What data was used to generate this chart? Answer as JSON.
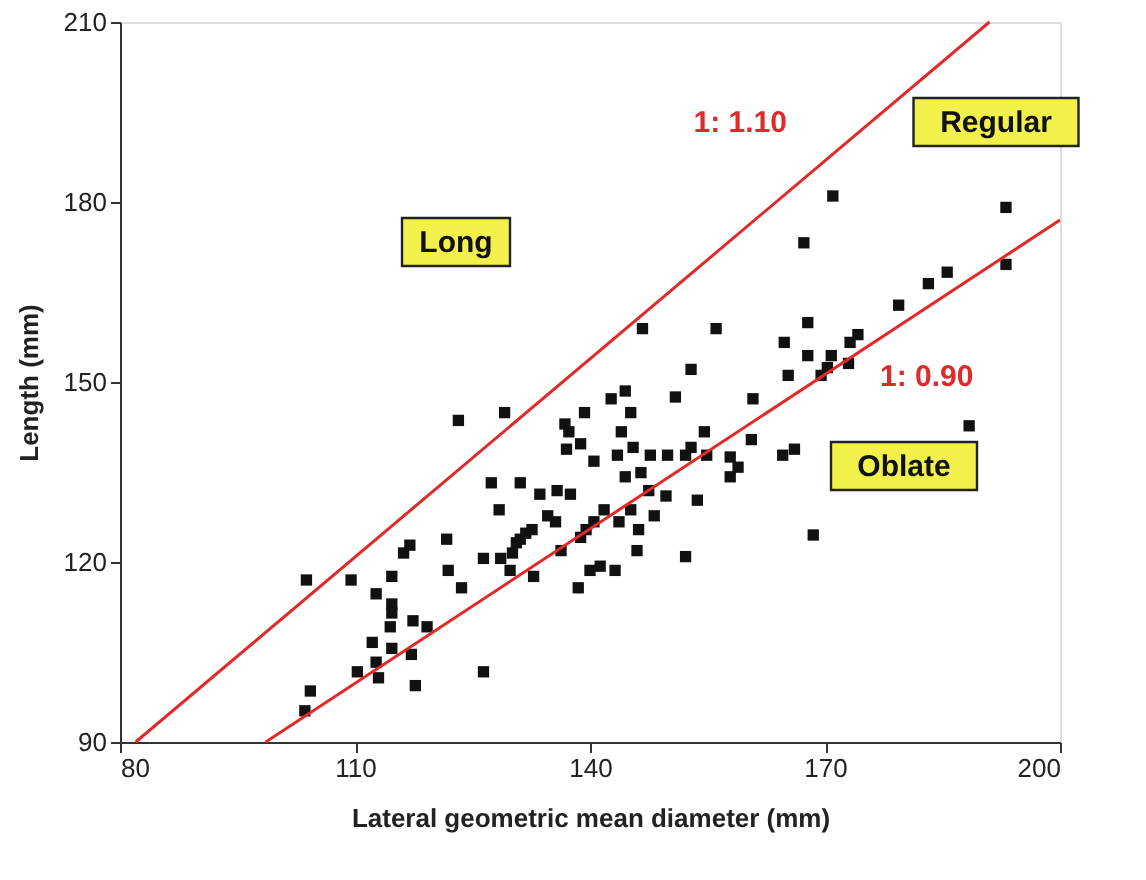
{
  "chart_data": {
    "type": "scatter",
    "xlabel": "Lateral geometric mean diameter (mm)",
    "ylabel": "Length (mm)",
    "xlim": [
      80,
      200
    ],
    "xticks": [
      80,
      110,
      140,
      170,
      200
    ],
    "ylim": [
      90,
      210
    ],
    "yticks": [
      90,
      120,
      150,
      180,
      210
    ],
    "grid": false,
    "annotations": [
      "Long",
      "Regular",
      "Oblate"
    ],
    "series": [
      {
        "color": "#111111",
        "marker": "square",
        "x": [
          123.2,
          129.1,
          127.4,
          131.1,
          128.4,
          117.0,
          116.2,
          121.7,
          126.4,
          128.6,
          130.6,
          130.1,
          129.8,
          103.8,
          109.5,
          114.7,
          112.7,
          121.9,
          123.6,
          114.7,
          114.7,
          114.5,
          117.4,
          119.2,
          112.2,
          114.7,
          117.2,
          112.7,
          110.3,
          113.0,
          117.7,
          126.4,
          104.3,
          103.6,
          146.7,
          156.1,
          152.9,
          144.5,
          142.7,
          150.9,
          160.8,
          139.3,
          145.2,
          136.8,
          137.3,
          144.0,
          154.6,
          160.6,
          138.8,
          137.0,
          145.5,
          152.9,
          143.5,
          147.7,
          149.9,
          152.2,
          154.9,
          157.9,
          140.5,
          158.9,
          146.5,
          144.5,
          157.9,
          147.5,
          135.8,
          133.6,
          137.5,
          149.7,
          153.7,
          141.8,
          145.2,
          134.6,
          135.6,
          148.2,
          143.7,
          140.5,
          132.6,
          131.8,
          139.5,
          146.2,
          131.1,
          138.8,
          136.3,
          146.0,
          152.2,
          141.3,
          140.0,
          143.2,
          132.8,
          138.5,
          171.0,
          193.1,
          167.3,
          193.1,
          185.6,
          183.2,
          179.4,
          167.8,
          164.8,
          174.2,
          173.2,
          167.8,
          170.8,
          173.0,
          165.3,
          170.3,
          169.5,
          188.4,
          166.1,
          164.6,
          168.5
        ],
        "values": [
          143.6,
          144.9,
          133.2,
          133.2,
          128.7,
          122.8,
          121.5,
          123.8,
          120.6,
          120.6,
          123.2,
          121.5,
          118.6,
          117.0,
          117.0,
          117.6,
          114.7,
          118.6,
          115.7,
          113.0,
          111.5,
          109.2,
          110.2,
          109.2,
          106.6,
          105.6,
          104.6,
          103.3,
          101.7,
          100.7,
          99.4,
          101.7,
          98.5,
          95.2,
          158.9,
          158.9,
          152.1,
          148.5,
          147.2,
          147.5,
          147.2,
          144.9,
          144.9,
          143.0,
          141.7,
          141.7,
          141.7,
          140.4,
          139.7,
          138.8,
          139.1,
          139.1,
          137.8,
          137.8,
          137.8,
          137.8,
          137.8,
          137.5,
          136.8,
          135.8,
          134.9,
          134.2,
          134.2,
          131.9,
          131.9,
          131.3,
          131.3,
          131.0,
          130.3,
          128.7,
          128.7,
          127.7,
          126.7,
          127.7,
          126.7,
          126.7,
          125.4,
          124.8,
          125.4,
          125.4,
          123.8,
          124.1,
          121.9,
          121.9,
          120.9,
          119.3,
          118.6,
          118.6,
          117.6,
          115.7,
          181.0,
          179.1,
          173.2,
          169.6,
          168.3,
          166.4,
          162.8,
          159.9,
          156.6,
          157.9,
          156.6,
          154.4,
          154.4,
          153.1,
          151.1,
          152.4,
          151.1,
          142.7,
          138.8,
          137.8,
          124.5
        ]
      },
      {
        "type": "line",
        "name": "1: 1.10",
        "color": "#e02a2a",
        "x": [
          82,
          191
        ],
        "values": [
          90,
          210
        ],
        "line_style": "solid"
      },
      {
        "type": "line",
        "name": "1: 0.90",
        "color": "#e02a2a",
        "x": [
          98.6,
          200
        ],
        "values": [
          90,
          177
        ],
        "line_style": "solid"
      }
    ]
  }
}
